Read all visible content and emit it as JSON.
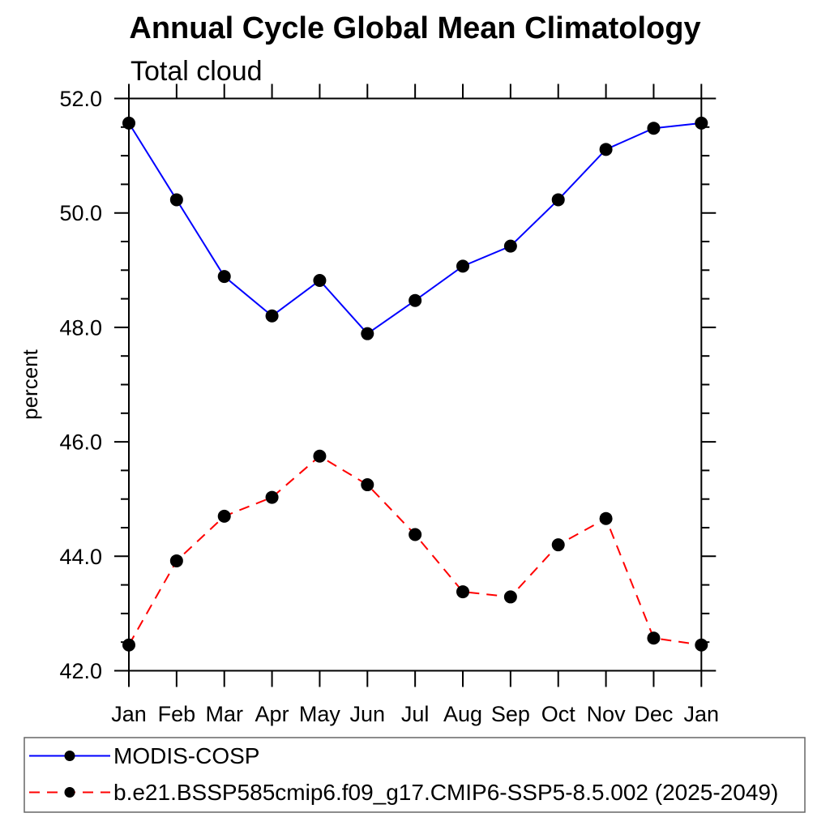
{
  "chart_data": {
    "type": "line",
    "title": "Annual Cycle Global Mean Climatology",
    "subtitle": "Total cloud",
    "xlabel": "",
    "ylabel": "percent",
    "x_categories": [
      "Jan",
      "Feb",
      "Mar",
      "Apr",
      "May",
      "Jun",
      "Jul",
      "Aug",
      "Sep",
      "Oct",
      "Nov",
      "Dec",
      "Jan"
    ],
    "ylim": [
      42.0,
      52.0
    ],
    "ytick_major_values": [
      42.0,
      44.0,
      46.0,
      48.0,
      50.0,
      52.0
    ],
    "ytick_major_labels": [
      "42.0",
      "44.0",
      "46.0",
      "48.0",
      "50.0",
      "52.0"
    ],
    "ytick_minor_step": 0.5,
    "grid": false,
    "legend_position": "bottom-left-boxed",
    "series": [
      {
        "name": "MODIS-COSP",
        "color": "#0000ff",
        "line_style": "solid",
        "marker": "filled-circle",
        "marker_color": "#000000",
        "values": [
          51.57,
          50.23,
          48.89,
          48.2,
          48.82,
          47.89,
          48.47,
          49.07,
          49.42,
          50.23,
          51.11,
          51.48,
          51.57
        ]
      },
      {
        "name": "b.e21.BSSP585cmip6.f09_g17.CMIP6-SSP5-8.5.002 (2025-2049)",
        "color": "#ff0000",
        "line_style": "dashed",
        "marker": "filled-circle",
        "marker_color": "#000000",
        "values": [
          42.45,
          43.92,
          44.7,
          45.03,
          45.75,
          45.25,
          44.38,
          43.38,
          43.29,
          44.2,
          44.66,
          42.57,
          42.45
        ]
      }
    ]
  },
  "colors": {
    "background": "#ffffff",
    "axis": "#000000",
    "marker": "#000000",
    "legend_border": "#666666"
  }
}
